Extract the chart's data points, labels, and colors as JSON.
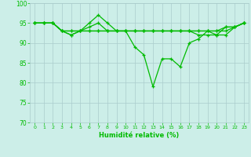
{
  "xlabel": "Humidité relative (%)",
  "xlim": [
    -0.5,
    23.5
  ],
  "ylim": [
    70,
    100
  ],
  "yticks": [
    70,
    75,
    80,
    85,
    90,
    95,
    100
  ],
  "xticks": [
    0,
    1,
    2,
    3,
    4,
    5,
    6,
    7,
    8,
    9,
    10,
    11,
    12,
    13,
    14,
    15,
    16,
    17,
    18,
    19,
    20,
    21,
    22,
    23
  ],
  "background_color": "#cceee8",
  "grid_color": "#aacccc",
  "line_color": "#00bb00",
  "lines": [
    [
      95,
      95,
      95,
      93,
      92,
      93,
      95,
      97,
      95,
      93,
      93,
      89,
      87,
      79,
      86,
      86,
      84,
      90,
      91,
      93,
      92,
      94,
      94,
      95
    ],
    [
      95,
      95,
      95,
      93,
      93,
      93,
      93,
      93,
      93,
      93,
      93,
      93,
      93,
      93,
      93,
      93,
      93,
      93,
      93,
      93,
      93,
      93,
      94,
      95
    ],
    [
      95,
      95,
      95,
      93,
      92,
      93,
      93,
      93,
      93,
      93,
      93,
      93,
      93,
      93,
      93,
      93,
      93,
      93,
      92,
      92,
      92,
      92,
      94,
      95
    ],
    [
      95,
      95,
      95,
      93,
      93,
      93,
      94,
      95,
      93,
      93,
      93,
      93,
      93,
      93,
      93,
      93,
      93,
      93,
      93,
      93,
      93,
      94,
      94,
      95
    ]
  ]
}
